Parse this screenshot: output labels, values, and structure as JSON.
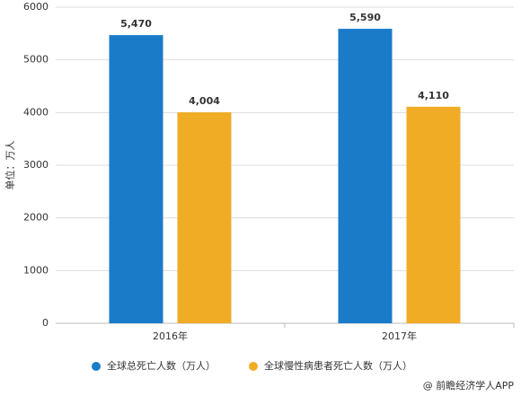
{
  "chart_data": {
    "type": "bar",
    "y_label": "单位：万人",
    "categories": [
      "2016年",
      "2017年"
    ],
    "series": [
      {
        "name": "全球总死亡人数（万人）",
        "color": "#1a7bc9",
        "values": [
          5470,
          5590
        ],
        "value_labels": [
          "5,470",
          "5,590"
        ]
      },
      {
        "name": "全球慢性病患者死亡人数（万人）",
        "color": "#f0ac25",
        "values": [
          4004,
          4110
        ],
        "value_labels": [
          "4,004",
          "4,110"
        ]
      }
    ],
    "ylim": [
      0,
      6000
    ],
    "yticks": [
      0,
      1000,
      2000,
      3000,
      4000,
      5000,
      6000
    ],
    "grid": true,
    "legend": "bottom",
    "source": "@ 前瞻经济学人APP"
  }
}
